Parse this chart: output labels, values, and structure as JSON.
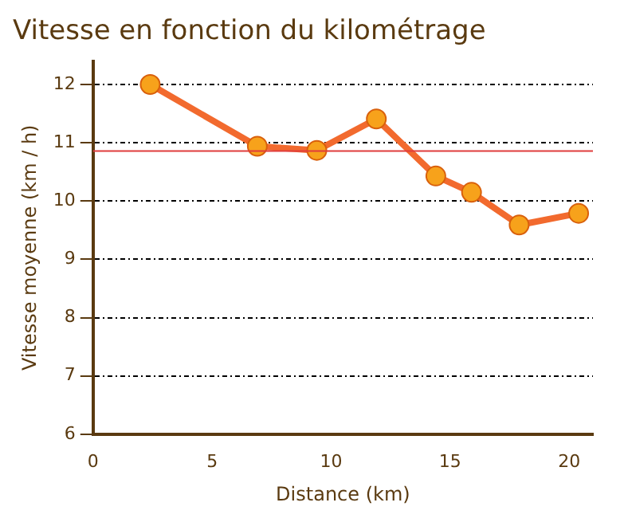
{
  "chart_data": {
    "type": "line",
    "title": "Vitesse en fonction du kilométrage",
    "xlabel": "Distance (km)",
    "ylabel": "Vitesse moyenne (km / h)",
    "x": [
      2.4,
      6.9,
      9.4,
      11.9,
      14.4,
      15.9,
      17.9,
      20.4
    ],
    "series": [
      {
        "color": "#f26a2e",
        "values": [
          12.0,
          10.94,
          10.87,
          11.41,
          10.43,
          10.15,
          9.59,
          9.79
        ]
      }
    ],
    "xlim": [
      0,
      21
    ],
    "xticks": [
      0,
      5,
      10,
      15,
      20
    ],
    "ylim": [
      6,
      12.4
    ],
    "yticks": [
      6,
      7,
      8,
      9,
      10,
      11,
      12
    ],
    "ref_lines": [
      {
        "axis": "y",
        "value": 10.86,
        "color": "#e03c3c"
      }
    ],
    "grid": "y",
    "marker": "circle",
    "line_style": "solid",
    "legend": false
  }
}
